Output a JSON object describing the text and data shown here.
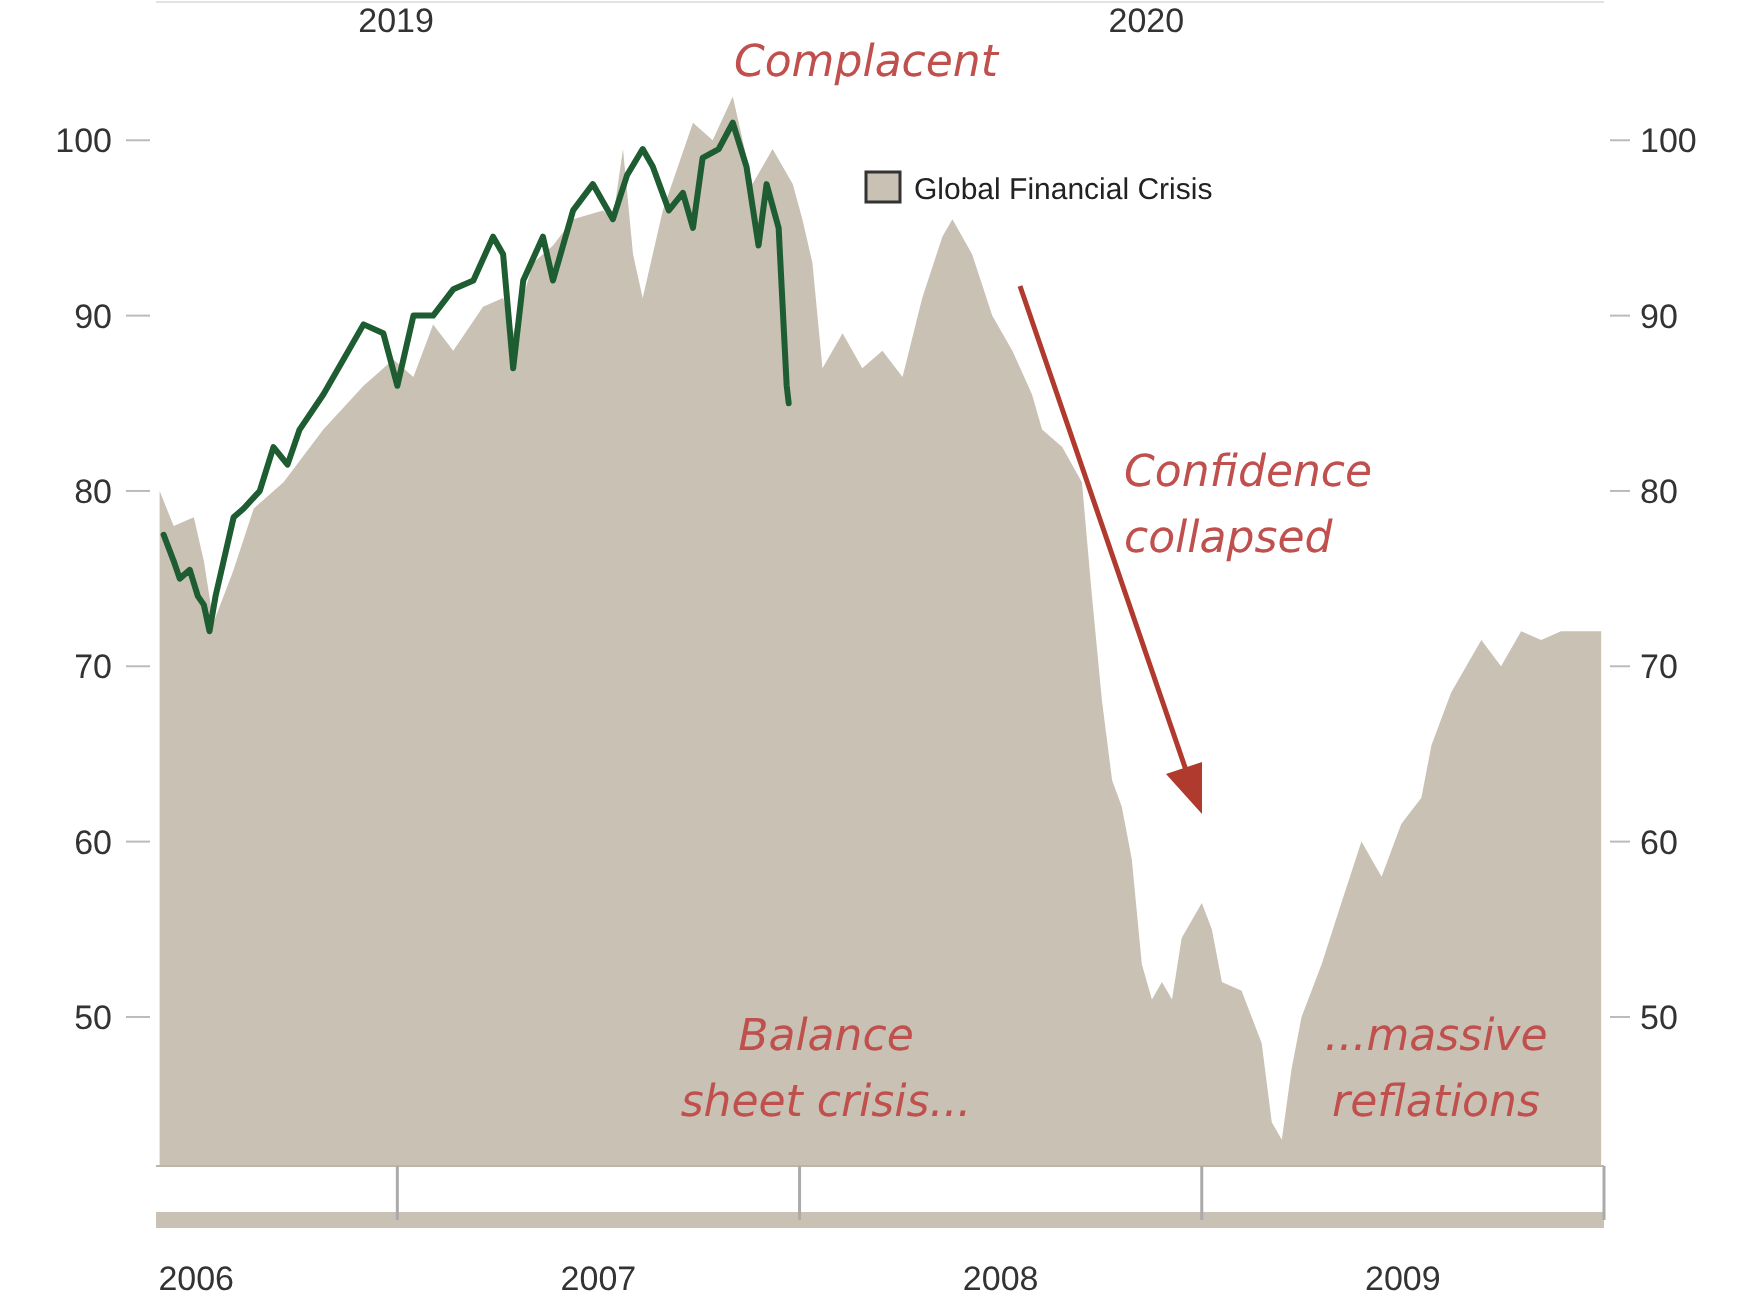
{
  "chart_data": {
    "type": "area",
    "legend": "top right",
    "xlim": [
      2005.9,
      2009.5
    ],
    "xticks": [
      2006,
      2007,
      2008,
      2009
    ],
    "x2lim": [
      2018.68,
      2020.61
    ],
    "x2ticks": [
      2019,
      2020
    ],
    "ylim": [
      41.5,
      108
    ],
    "yticks": [
      50,
      60,
      70,
      80,
      90,
      100
    ],
    "y2lim": [
      41.5,
      108
    ],
    "y2ticks": [
      50,
      60,
      70,
      80,
      90,
      100
    ],
    "annotations": [
      "Complacent",
      "Confidence collapsed",
      "Balance sheet crisis...",
      "...massive reflations"
    ],
    "series": [
      {
        "name": "Global Financial Crisis",
        "color": "#c9c1b3",
        "x": [
          2005.909,
          2005.944,
          2005.994,
          2006.019,
          2006.043,
          2006.093,
          2006.143,
          2006.217,
          2006.316,
          2006.416,
          2006.49,
          2006.54,
          2006.589,
          2006.639,
          2006.713,
          2006.763,
          2006.788,
          2006.837,
          2006.887,
          2006.937,
          2007.011,
          2007.036,
          2007.061,
          2007.086,
          2007.11,
          2007.16,
          2007.235,
          2007.284,
          2007.334,
          2007.383,
          2007.433,
          2007.483,
          2007.507,
          2007.532,
          2007.557,
          2007.607,
          2007.656,
          2007.706,
          2007.756,
          2007.805,
          2007.855,
          2007.88,
          2007.929,
          2007.979,
          2008.029,
          2008.078,
          2008.103,
          2008.153,
          2008.202,
          2008.227,
          2008.252,
          2008.277,
          2008.301,
          2008.326,
          2008.351,
          2008.376,
          2008.401,
          2008.426,
          2008.45,
          2008.5,
          2008.525,
          2008.55,
          2008.599,
          2008.649,
          2008.674,
          2008.699,
          2008.723,
          2008.748,
          2008.798,
          2008.847,
          2008.897,
          2008.947,
          2008.996,
          2009.046,
          2009.071,
          2009.12,
          2009.17,
          2009.195,
          2009.244,
          2009.294,
          2009.344,
          2009.393,
          2009.443,
          2009.493
        ],
        "values": [
          80,
          78,
          78.5,
          76,
          72.5,
          75.5,
          79,
          80.5,
          83.5,
          86,
          87.5,
          86.5,
          89.5,
          88,
          90.5,
          91,
          89,
          93,
          94,
          95.5,
          96,
          95.5,
          99.5,
          93.5,
          91,
          96,
          101,
          100,
          102.5,
          97.5,
          99.5,
          97.5,
          95.5,
          93,
          87,
          89,
          87,
          88,
          86.5,
          91,
          94.5,
          95.5,
          93.5,
          90,
          88,
          85.5,
          83.5,
          82.5,
          80.5,
          74,
          68,
          63.5,
          62,
          59,
          53,
          51,
          52,
          51,
          54.5,
          56.5,
          55,
          52,
          51.5,
          48.5,
          44,
          43,
          47,
          50,
          53,
          56.5,
          60,
          58,
          61,
          62.5,
          65.5,
          68.5,
          70.5,
          71.5,
          70,
          72,
          71.5,
          72,
          72,
          72
        ]
      },
      {
        "type": "line",
        "color": "#1e5c32",
        "x": [
          2005.919,
          2005.944,
          2005.959,
          2005.984,
          2006.004,
          2006.019,
          2006.033,
          2006.048,
          2006.068,
          2006.093,
          2006.118,
          2006.158,
          2006.192,
          2006.227,
          2006.257,
          2006.316,
          2006.366,
          2006.416,
          2006.465,
          2006.5,
          2006.54,
          2006.589,
          2006.639,
          2006.689,
          2006.738,
          2006.763,
          2006.788,
          2006.813,
          2006.862,
          2006.887,
          2006.937,
          2006.986,
          2007.036,
          2007.071,
          2007.11,
          2007.135,
          2007.175,
          2007.21,
          2007.235,
          2007.259,
          2007.299,
          2007.334,
          2007.368,
          2007.398,
          2007.418,
          2007.448,
          2007.468,
          2007.473
        ],
        "values": [
          77.5,
          76,
          75,
          75.5,
          74,
          73.5,
          72,
          74,
          76,
          78.5,
          79,
          80,
          82.5,
          81.5,
          83.5,
          85.5,
          87.5,
          89.5,
          89,
          86,
          90,
          90,
          91.5,
          92,
          94.5,
          93.5,
          87,
          92,
          94.5,
          92,
          96,
          97.5,
          95.5,
          98,
          99.5,
          98.5,
          96,
          97,
          95,
          99,
          99.5,
          101,
          98.5,
          94,
          97.5,
          95,
          86,
          85
        ]
      }
    ]
  }
}
